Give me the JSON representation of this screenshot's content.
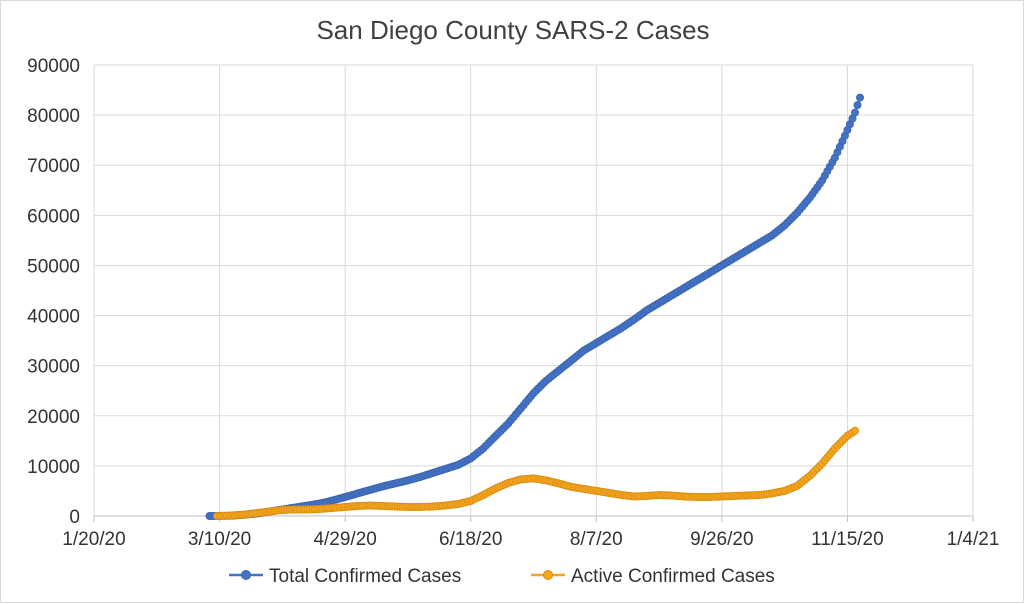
{
  "chart_data": {
    "type": "scatter",
    "title": "San Diego County SARS-2 Cases",
    "xlabel": "",
    "ylabel": "",
    "xlim_days": [
      0,
      350
    ],
    "ylim": [
      0,
      90000
    ],
    "y_ticks": [
      0,
      10000,
      20000,
      30000,
      40000,
      50000,
      60000,
      70000,
      80000,
      90000
    ],
    "x_ticks": [
      {
        "day": 0,
        "label": "1/20/20"
      },
      {
        "day": 50,
        "label": "3/10/20"
      },
      {
        "day": 100,
        "label": "4/29/20"
      },
      {
        "day": 150,
        "label": "6/18/20"
      },
      {
        "day": 200,
        "label": "8/7/20"
      },
      {
        "day": 250,
        "label": "9/26/20"
      },
      {
        "day": 300,
        "label": "11/15/20"
      },
      {
        "day": 350,
        "label": "1/4/21"
      }
    ],
    "grid": true,
    "legend_position": "bottom",
    "x_unit": "days since 1/20/20",
    "series": [
      {
        "name": "Total Confirmed Cases",
        "color": "#4472c4",
        "points": [
          [
            46,
            0
          ],
          [
            50,
            10
          ],
          [
            55,
            50
          ],
          [
            60,
            250
          ],
          [
            65,
            500
          ],
          [
            70,
            900
          ],
          [
            75,
            1300
          ],
          [
            80,
            1700
          ],
          [
            85,
            2100
          ],
          [
            90,
            2500
          ],
          [
            95,
            3100
          ],
          [
            100,
            3800
          ],
          [
            105,
            4500
          ],
          [
            110,
            5200
          ],
          [
            115,
            5900
          ],
          [
            120,
            6500
          ],
          [
            125,
            7100
          ],
          [
            130,
            7800
          ],
          [
            135,
            8600
          ],
          [
            140,
            9400
          ],
          [
            145,
            10200
          ],
          [
            150,
            11500
          ],
          [
            155,
            13500
          ],
          [
            160,
            16000
          ],
          [
            165,
            18500
          ],
          [
            170,
            21500
          ],
          [
            175,
            24500
          ],
          [
            180,
            27000
          ],
          [
            185,
            29000
          ],
          [
            190,
            31000
          ],
          [
            195,
            33000
          ],
          [
            200,
            34500
          ],
          [
            205,
            36000
          ],
          [
            210,
            37500
          ],
          [
            215,
            39200
          ],
          [
            220,
            41000
          ],
          [
            225,
            42500
          ],
          [
            230,
            44000
          ],
          [
            235,
            45500
          ],
          [
            240,
            47000
          ],
          [
            245,
            48500
          ],
          [
            250,
            50000
          ],
          [
            255,
            51500
          ],
          [
            260,
            53000
          ],
          [
            265,
            54500
          ],
          [
            270,
            56000
          ],
          [
            275,
            58000
          ],
          [
            280,
            60500
          ],
          [
            285,
            63500
          ],
          [
            290,
            67000
          ],
          [
            295,
            71500
          ],
          [
            300,
            77000
          ],
          [
            303,
            80500
          ],
          [
            305,
            83500
          ]
        ]
      },
      {
        "name": "Active Confirmed Cases",
        "color": "#f5a623",
        "points": [
          [
            49,
            0
          ],
          [
            55,
            100
          ],
          [
            60,
            300
          ],
          [
            65,
            600
          ],
          [
            70,
            900
          ],
          [
            75,
            1200
          ],
          [
            80,
            1300
          ],
          [
            85,
            1300
          ],
          [
            90,
            1400
          ],
          [
            95,
            1600
          ],
          [
            100,
            1800
          ],
          [
            105,
            2000
          ],
          [
            110,
            2100
          ],
          [
            115,
            2000
          ],
          [
            120,
            1900
          ],
          [
            125,
            1800
          ],
          [
            130,
            1800
          ],
          [
            135,
            1900
          ],
          [
            140,
            2100
          ],
          [
            145,
            2400
          ],
          [
            150,
            3000
          ],
          [
            155,
            4200
          ],
          [
            160,
            5500
          ],
          [
            165,
            6600
          ],
          [
            170,
            7300
          ],
          [
            175,
            7500
          ],
          [
            180,
            7100
          ],
          [
            185,
            6500
          ],
          [
            190,
            5800
          ],
          [
            195,
            5400
          ],
          [
            200,
            5000
          ],
          [
            205,
            4600
          ],
          [
            210,
            4200
          ],
          [
            215,
            3900
          ],
          [
            220,
            4000
          ],
          [
            225,
            4200
          ],
          [
            230,
            4100
          ],
          [
            235,
            3900
          ],
          [
            240,
            3800
          ],
          [
            245,
            3800
          ],
          [
            250,
            3900
          ],
          [
            255,
            4000
          ],
          [
            260,
            4100
          ],
          [
            265,
            4200
          ],
          [
            270,
            4500
          ],
          [
            275,
            5000
          ],
          [
            280,
            6000
          ],
          [
            285,
            8000
          ],
          [
            290,
            10500
          ],
          [
            295,
            13500
          ],
          [
            300,
            16000
          ],
          [
            303,
            17000
          ]
        ]
      }
    ]
  }
}
